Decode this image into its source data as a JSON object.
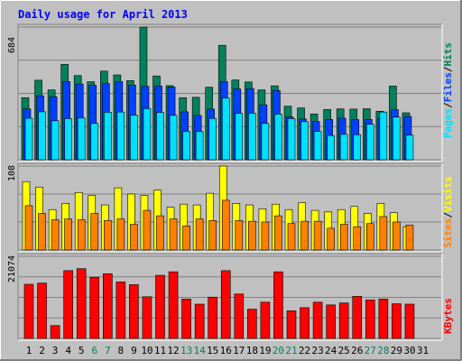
{
  "title": "Daily usage for April 2013",
  "colors": {
    "hits": "#00805c",
    "files": "#0040ff",
    "pages": "#00e0ff",
    "visits": "#ffff00",
    "sites": "#ff8000",
    "kbytes": "#ff0000",
    "title": "#0000ff",
    "background": "#c0c0c0",
    "weekend_day": "#00805c",
    "weekday": "#000000"
  },
  "chart_data": [
    {
      "type": "bar",
      "title": "Daily usage for April 2013",
      "max_label": "684",
      "ylim": [
        0,
        684
      ],
      "legend": [
        "Pages",
        "Files",
        "Hits"
      ],
      "legend_separator": "/",
      "categories": [
        "1",
        "2",
        "3",
        "4",
        "5",
        "6",
        "7",
        "8",
        "9",
        "10",
        "11",
        "12",
        "13",
        "14",
        "15",
        "16",
        "17",
        "18",
        "19",
        "20",
        "21",
        "22",
        "23",
        "24",
        "25",
        "26",
        "27",
        "28",
        "29",
        "30",
        "31"
      ],
      "series": [
        {
          "name": "Hits",
          "values": [
            320,
            410,
            360,
            492,
            434,
            402,
            457,
            437,
            408,
            684,
            432,
            382,
            320,
            322,
            374,
            590,
            411,
            401,
            360,
            381,
            276,
            267,
            236,
            259,
            262,
            261,
            263,
            250,
            380,
            242,
            0
          ]
        },
        {
          "name": "Files",
          "values": [
            262,
            330,
            325,
            403,
            390,
            384,
            393,
            403,
            385,
            378,
            380,
            375,
            247,
            228,
            261,
            402,
            365,
            367,
            283,
            357,
            221,
            210,
            197,
            208,
            214,
            207,
            208,
            213,
            258,
            223,
            0
          ]
        },
        {
          "name": "Pages",
          "values": [
            214,
            247,
            201,
            212,
            215,
            187,
            245,
            246,
            230,
            264,
            244,
            229,
            145,
            145,
            213,
            318,
            239,
            240,
            187,
            235,
            212,
            196,
            146,
            125,
            131,
            129,
            183,
            246,
            220,
            127,
            0
          ]
        }
      ]
    },
    {
      "type": "bar",
      "max_label": "108",
      "ylim": [
        0,
        108
      ],
      "legend": [
        "Sites",
        "Visits"
      ],
      "legend_separator": "/",
      "categories": [
        "1",
        "2",
        "3",
        "4",
        "5",
        "6",
        "7",
        "8",
        "9",
        "10",
        "11",
        "12",
        "13",
        "14",
        "15",
        "16",
        "17",
        "18",
        "19",
        "20",
        "21",
        "22",
        "23",
        "24",
        "25",
        "26",
        "27",
        "28",
        "29",
        "30",
        "31"
      ],
      "series": [
        {
          "name": "Visits",
          "values": [
            88,
            81,
            52,
            60,
            74,
            70,
            58,
            80,
            72,
            70,
            77,
            55,
            59,
            58,
            73,
            108,
            60,
            58,
            53,
            59,
            52,
            61,
            51,
            49,
            52,
            56,
            47,
            60,
            48,
            30,
            0
          ]
        },
        {
          "name": "Sites",
          "values": [
            57,
            47,
            39,
            40,
            39,
            47,
            38,
            40,
            33,
            51,
            44,
            40,
            31,
            40,
            38,
            64,
            38,
            37,
            36,
            44,
            34,
            37,
            37,
            28,
            33,
            30,
            34,
            43,
            36,
            32,
            0
          ]
        }
      ]
    },
    {
      "type": "bar",
      "max_label": "21074",
      "ylim": [
        0,
        21074
      ],
      "legend": [
        "KBytes"
      ],
      "categories": [
        "1",
        "2",
        "3",
        "4",
        "5",
        "6",
        "7",
        "8",
        "9",
        "10",
        "11",
        "12",
        "13",
        "14",
        "15",
        "16",
        "17",
        "18",
        "19",
        "20",
        "21",
        "22",
        "23",
        "24",
        "25",
        "26",
        "27",
        "28",
        "29",
        "30",
        "31"
      ],
      "series": [
        {
          "name": "KBytes",
          "values": [
            13900,
            14200,
            3300,
            17400,
            17900,
            15700,
            16600,
            14500,
            13800,
            10700,
            16200,
            17100,
            10100,
            8800,
            10600,
            17400,
            11400,
            7500,
            9300,
            17100,
            7100,
            7900,
            9300,
            8600,
            9100,
            10800,
            9900,
            10100,
            8900,
            8800,
            0
          ]
        }
      ]
    }
  ],
  "weekend_days": [
    6,
    7,
    13,
    14,
    20,
    21,
    27,
    28
  ]
}
